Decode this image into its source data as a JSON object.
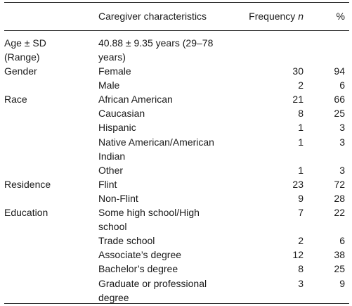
{
  "table": {
    "header": {
      "col1": "",
      "col2": "Caregiver characteristics",
      "col3_text": "Frequency",
      "col3_var": "n",
      "col4": "%"
    },
    "age": {
      "label_line1": "Age ± SD",
      "label_line2": "(Range)",
      "value_line1": "40.88 ± 9.35 years (29–78",
      "value_line2": "years)"
    },
    "rows": [
      {
        "group": "Gender",
        "lines": [
          "Female"
        ],
        "n": "30",
        "pct": "94"
      },
      {
        "group": "",
        "lines": [
          "Male"
        ],
        "n": "2",
        "pct": "6"
      },
      {
        "group": "Race",
        "lines": [
          "African American"
        ],
        "n": "21",
        "pct": "66"
      },
      {
        "group": "",
        "lines": [
          "Caucasian"
        ],
        "n": "8",
        "pct": "25"
      },
      {
        "group": "",
        "lines": [
          "Hispanic"
        ],
        "n": "1",
        "pct": "3"
      },
      {
        "group": "",
        "lines": [
          "Native American/American",
          "Indian"
        ],
        "n": "1",
        "pct": "3"
      },
      {
        "group": "",
        "lines": [
          "Other"
        ],
        "n": "1",
        "pct": "3"
      },
      {
        "group": "Residence",
        "lines": [
          "Flint"
        ],
        "n": "23",
        "pct": "72"
      },
      {
        "group": "",
        "lines": [
          "Non-Flint"
        ],
        "n": "9",
        "pct": "28"
      },
      {
        "group": "Education",
        "lines": [
          "Some high school/High",
          "school"
        ],
        "n": "7",
        "pct": "22"
      },
      {
        "group": "",
        "lines": [
          "Trade school"
        ],
        "n": "2",
        "pct": "6"
      },
      {
        "group": "",
        "lines": [
          "Associate’s degree"
        ],
        "n": "12",
        "pct": "38"
      },
      {
        "group": "",
        "lines": [
          "Bachelor’s degree"
        ],
        "n": "8",
        "pct": "25"
      },
      {
        "group": "",
        "lines": [
          "Graduate or professional",
          "degree"
        ],
        "n": "3",
        "pct": "9"
      }
    ]
  }
}
